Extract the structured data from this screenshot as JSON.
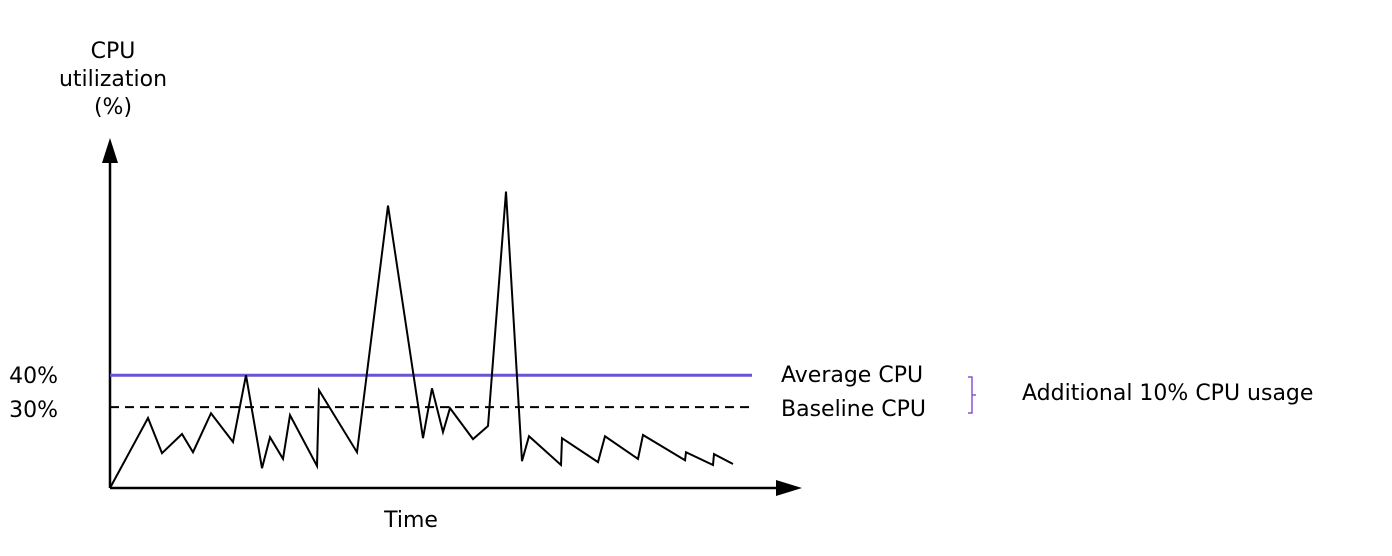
{
  "chart_data": {
    "type": "line",
    "ylabel": [
      "CPU",
      "utilization",
      "(%)"
    ],
    "xlabel": "Time",
    "x": [
      0,
      38,
      52,
      72,
      83,
      101,
      123,
      136,
      152,
      160,
      173,
      180,
      207,
      209,
      247,
      278,
      313,
      322,
      333,
      340,
      363,
      378,
      396,
      412,
      419,
      451,
      452,
      488,
      495,
      528,
      533,
      575,
      576,
      603,
      604,
      623
    ],
    "series": [
      {
        "color": "#000000",
        "values": [
          4.7,
          26.6,
          15.6,
          21.6,
          15.9,
          28.1,
          19.1,
          40,
          10.9,
          20.6,
          13.8,
          27.5,
          11.6,
          35.3,
          15.9,
          93.1,
          20.3,
          35.9,
          22.2,
          29.7,
          20,
          24.1,
          97.5,
          13.1,
          20.9,
          11.9,
          20.3,
          12.8,
          20.9,
          13.8,
          21.3,
          13.4,
          15.9,
          11.9,
          15.3,
          12.2
        ]
      }
    ],
    "reference_lines": [
      {
        "name": "Average CPU",
        "value": 40,
        "color": "#6a52d6",
        "style": "solid"
      },
      {
        "name": "Baseline CPU",
        "value": 30,
        "color": "#000000",
        "style": "dashed"
      }
    ],
    "annotation": "Additional 10% CPU usage",
    "xlim": [
      0,
      690
    ],
    "ylim": [
      4.7,
      113
    ],
    "yticks": [
      {
        "value": 40,
        "label": "40%"
      },
      {
        "value": 30,
        "label": "30%"
      }
    ]
  }
}
